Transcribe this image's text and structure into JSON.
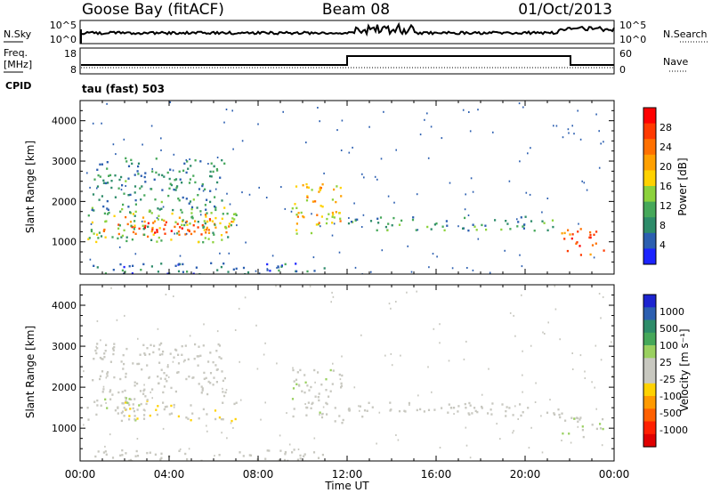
{
  "header": {
    "station": "Goose Bay (fitACF)",
    "beam": "Beam 08",
    "date": "01/Oct/2013"
  },
  "noise_panel": {
    "left_label": "N.Sky",
    "left_ticks": [
      "10^5",
      "10^0"
    ],
    "right_label": "N.Search",
    "right_ticks": [
      "10^5",
      "10^0"
    ]
  },
  "freq_panel": {
    "label_line1": "Freq.",
    "label_line2": "[MHz]",
    "left_ticks": [
      "18",
      "8"
    ],
    "right_label": "Nave",
    "right_ticks": [
      "60",
      "0"
    ],
    "cpid_label": "CPID",
    "cpid_value": "tau (fast) 503"
  },
  "axes": {
    "xlabel": "Time UT",
    "ylabel": "Slant Range [km]",
    "xticks": [
      "00:00",
      "04:00",
      "08:00",
      "12:00",
      "16:00",
      "20:00",
      "00:00"
    ],
    "yticks": [
      "1000",
      "2000",
      "3000",
      "4000"
    ]
  },
  "colorbars": {
    "power": {
      "label": "Power [dB]",
      "ticks": [
        "4",
        "8",
        "12",
        "16",
        "20",
        "24",
        "28"
      ],
      "colors": [
        "#1c24ff",
        "#2c5fb0",
        "#2e8c6a",
        "#46a85a",
        "#8cd23c",
        "#ffd200",
        "#ffa000",
        "#ff7000",
        "#ff3a00",
        "#ff0000"
      ]
    },
    "velocity": {
      "label": "Velocity [m s⁻¹]",
      "ticks": [
        "1000",
        "500",
        "100",
        "25",
        "-25",
        "-100",
        "-500",
        "-1000"
      ],
      "colors": [
        "#1c24d0",
        "#2c5fb0",
        "#2e8c6a",
        "#46a85a",
        "#9ad060",
        "#c8c8c0",
        "#c8c8c0",
        "#ffd200",
        "#ff9a00",
        "#ff6000",
        "#ff2000",
        "#e00000"
      ]
    }
  },
  "chart_data": [
    {
      "type": "heatmap",
      "name": "Power",
      "x_unit": "hours UT",
      "xlim": [
        0,
        24
      ],
      "ylim": [
        200,
        4500
      ],
      "clim": [
        0,
        30
      ],
      "regions": [
        {
          "x": [
            1.0,
            6.8
          ],
          "y": [
            1150,
            1700
          ],
          "value": 22
        },
        {
          "x": [
            2.0,
            5.5
          ],
          "y": [
            1200,
            1500
          ],
          "value": 27
        },
        {
          "x": [
            0.3,
            7.0
          ],
          "y": [
            1000,
            1900
          ],
          "value": 12
        },
        {
          "x": [
            0.5,
            6.5
          ],
          "y": [
            1800,
            3100
          ],
          "value": 7
        },
        {
          "x": [
            9.5,
            11.8
          ],
          "y": [
            1150,
            2500
          ],
          "value": 18
        },
        {
          "x": [
            12.0,
            21.5
          ],
          "y": [
            1300,
            1650
          ],
          "value": 8
        },
        {
          "x": [
            21.5,
            23.5
          ],
          "y": [
            700,
            1350
          ],
          "value": 25
        },
        {
          "x": [
            0.5,
            11.0
          ],
          "y": [
            200,
            500
          ],
          "value": 5
        }
      ]
    },
    {
      "type": "heatmap",
      "name": "Velocity",
      "x_unit": "hours UT",
      "xlim": [
        0,
        24
      ],
      "ylim": [
        200,
        4500
      ],
      "clim": [
        -1000,
        1000
      ],
      "regions": [
        {
          "x": [
            1.5,
            7.0
          ],
          "y": [
            1200,
            1700
          ],
          "value": -120
        },
        {
          "x": [
            0.3,
            3.0
          ],
          "y": [
            1200,
            1900
          ],
          "value": 80
        },
        {
          "x": [
            0.5,
            6.5
          ],
          "y": [
            1800,
            3100
          ],
          "value": 0
        },
        {
          "x": [
            9.5,
            11.8
          ],
          "y": [
            1150,
            2500
          ],
          "value": 60
        },
        {
          "x": [
            12.0,
            21.5
          ],
          "y": [
            1300,
            1650
          ],
          "value": 0
        },
        {
          "x": [
            21.5,
            23.5
          ],
          "y": [
            800,
            1400
          ],
          "value": 150
        },
        {
          "x": [
            0.5,
            11.0
          ],
          "y": [
            200,
            500
          ],
          "value": 20
        }
      ]
    }
  ]
}
